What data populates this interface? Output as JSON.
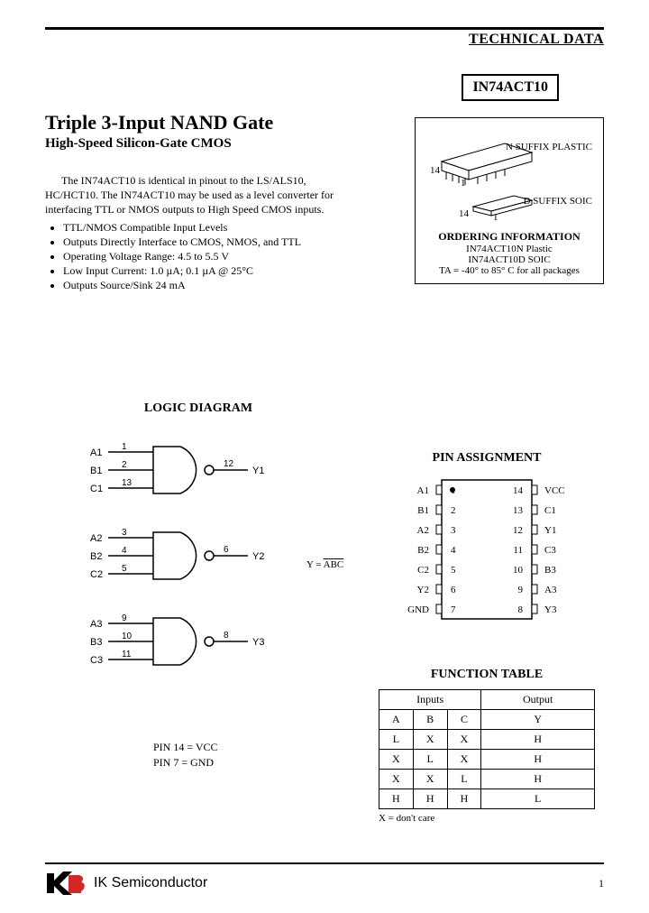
{
  "header": {
    "tech_data": "TECHNICAL DATA"
  },
  "part_number": "IN74ACT10",
  "title": "Triple 3-Input NAND Gate",
  "subtitle": "High-Speed Silicon-Gate CMOS",
  "intro": "The IN74ACT10 is identical in pinout to the LS/ALS10, HC/HCT10. The IN74ACT10 may be used as a level converter for interfacing TTL or NMOS outputs to High Speed CMOS inputs.",
  "features": [
    "TTL/NMOS Compatible Input Levels",
    "Outputs Directly Interface to CMOS, NMOS, and TTL",
    "Operating Voltage Range: 4.5 to 5.5 V",
    "Low Input Current: 1.0 µA; 0.1 µA @ 25°C",
    "Outputs Source/Sink 24 mA"
  ],
  "ordering": {
    "pkg1_label": "N SUFFIX\nPLASTIC",
    "pkg2_label": "D SUFFIX\nSOIC",
    "pin14_1": "14",
    "pin1_1": "1",
    "pin14_2": "14",
    "pin1_2": "1",
    "title": "ORDERING INFORMATION",
    "line1": "IN74ACT10N Plastic",
    "line2": "IN74ACT10D SOIC",
    "temp": "TA = -40° to 85° C for all packages"
  },
  "logic": {
    "title": "LOGIC DIAGRAM",
    "gates": [
      {
        "inputs": [
          "A1",
          "B1",
          "C1"
        ],
        "pins": [
          "1",
          "2",
          "13"
        ],
        "out_pin": "12",
        "out": "Y1"
      },
      {
        "inputs": [
          "A2",
          "B2",
          "C2"
        ],
        "pins": [
          "3",
          "4",
          "5"
        ],
        "out_pin": "6",
        "out": "Y2"
      },
      {
        "inputs": [
          "A3",
          "B3",
          "C3"
        ],
        "pins": [
          "9",
          "10",
          "11"
        ],
        "out_pin": "8",
        "out": "Y3"
      }
    ],
    "equation": "Y = ABC",
    "pin_note1": "PIN 14 = VCC",
    "pin_note2": "PIN 7 = GND"
  },
  "pin_assignment": {
    "title": "PIN ASSIGNMENT",
    "left": [
      "A1",
      "B1",
      "A2",
      "B2",
      "C2",
      "Y2",
      "GND"
    ],
    "left_nums": [
      "1",
      "2",
      "3",
      "4",
      "5",
      "6",
      "7"
    ],
    "right": [
      "VCC",
      "C1",
      "Y1",
      "C3",
      "B3",
      "A3",
      "Y3"
    ],
    "right_nums": [
      "14",
      "13",
      "12",
      "11",
      "10",
      "9",
      "8"
    ]
  },
  "function_table": {
    "title": "FUNCTION TABLE",
    "head_inputs": "Inputs",
    "head_output": "Output",
    "cols": [
      "A",
      "B",
      "C",
      "Y"
    ],
    "rows": [
      [
        "L",
        "X",
        "X",
        "H"
      ],
      [
        "X",
        "L",
        "X",
        "H"
      ],
      [
        "X",
        "X",
        "L",
        "H"
      ],
      [
        "H",
        "H",
        "H",
        "L"
      ]
    ],
    "note": "X = don't care"
  },
  "footer": {
    "company": "IK Semiconductor",
    "page": "1"
  },
  "colors": {
    "line": "#000000",
    "bg": "#ffffff"
  }
}
